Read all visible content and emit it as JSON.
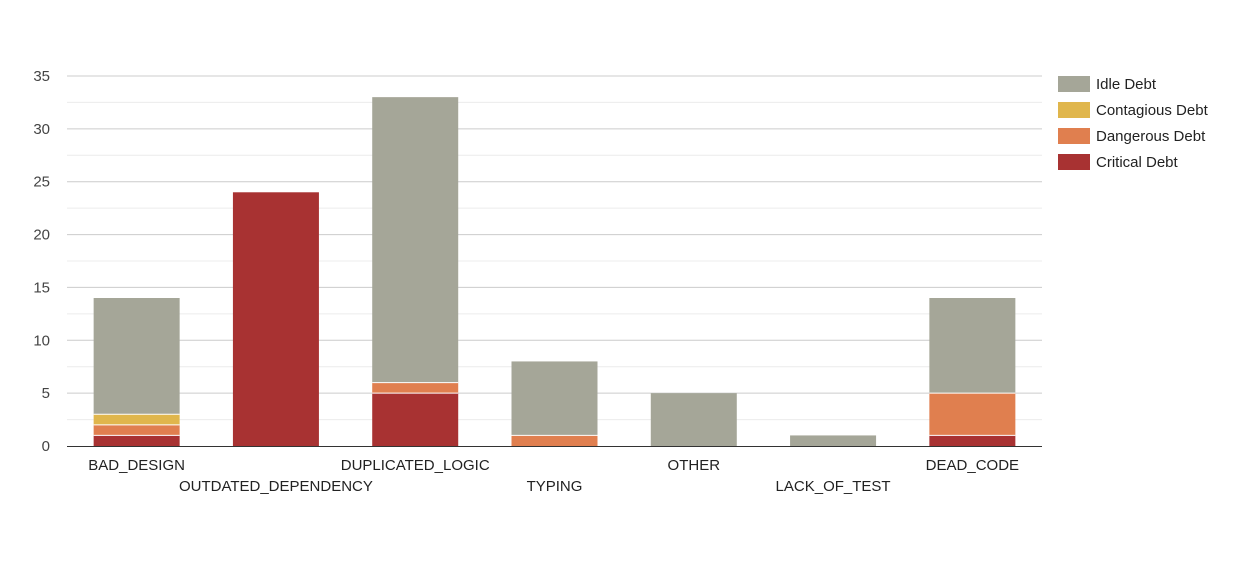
{
  "chart_data": {
    "type": "bar",
    "stacked": true,
    "categories": [
      "BAD_DESIGN",
      "OUTDATED_DEPENDENCY",
      "DUPLICATED_LOGIC",
      "TYPING",
      "OTHER",
      "LACK_OF_TEST",
      "DEAD_CODE"
    ],
    "series": [
      {
        "name": "Critical Debt",
        "color": "#a83232",
        "values": [
          1,
          24,
          5,
          0,
          0,
          0,
          1
        ]
      },
      {
        "name": "Dangerous Debt",
        "color": "#e07f4f",
        "values": [
          1,
          0,
          1,
          1,
          0,
          0,
          4
        ]
      },
      {
        "name": "Contagious Debt",
        "color": "#e0b64c",
        "values": [
          1,
          0,
          0,
          0,
          0,
          0,
          0
        ]
      },
      {
        "name": "Idle Debt",
        "color": "#a5a698",
        "values": [
          11,
          0,
          27,
          7,
          5,
          1,
          9
        ]
      }
    ],
    "legend_order": [
      "Idle Debt",
      "Contagious Debt",
      "Dangerous Debt",
      "Critical Debt"
    ],
    "legend_position": "top-right",
    "ylim": [
      0,
      35
    ],
    "yticks": [
      0,
      5,
      10,
      15,
      20,
      25,
      30,
      35
    ],
    "grid": true,
    "xlabel": "",
    "ylabel": "",
    "title": ""
  }
}
